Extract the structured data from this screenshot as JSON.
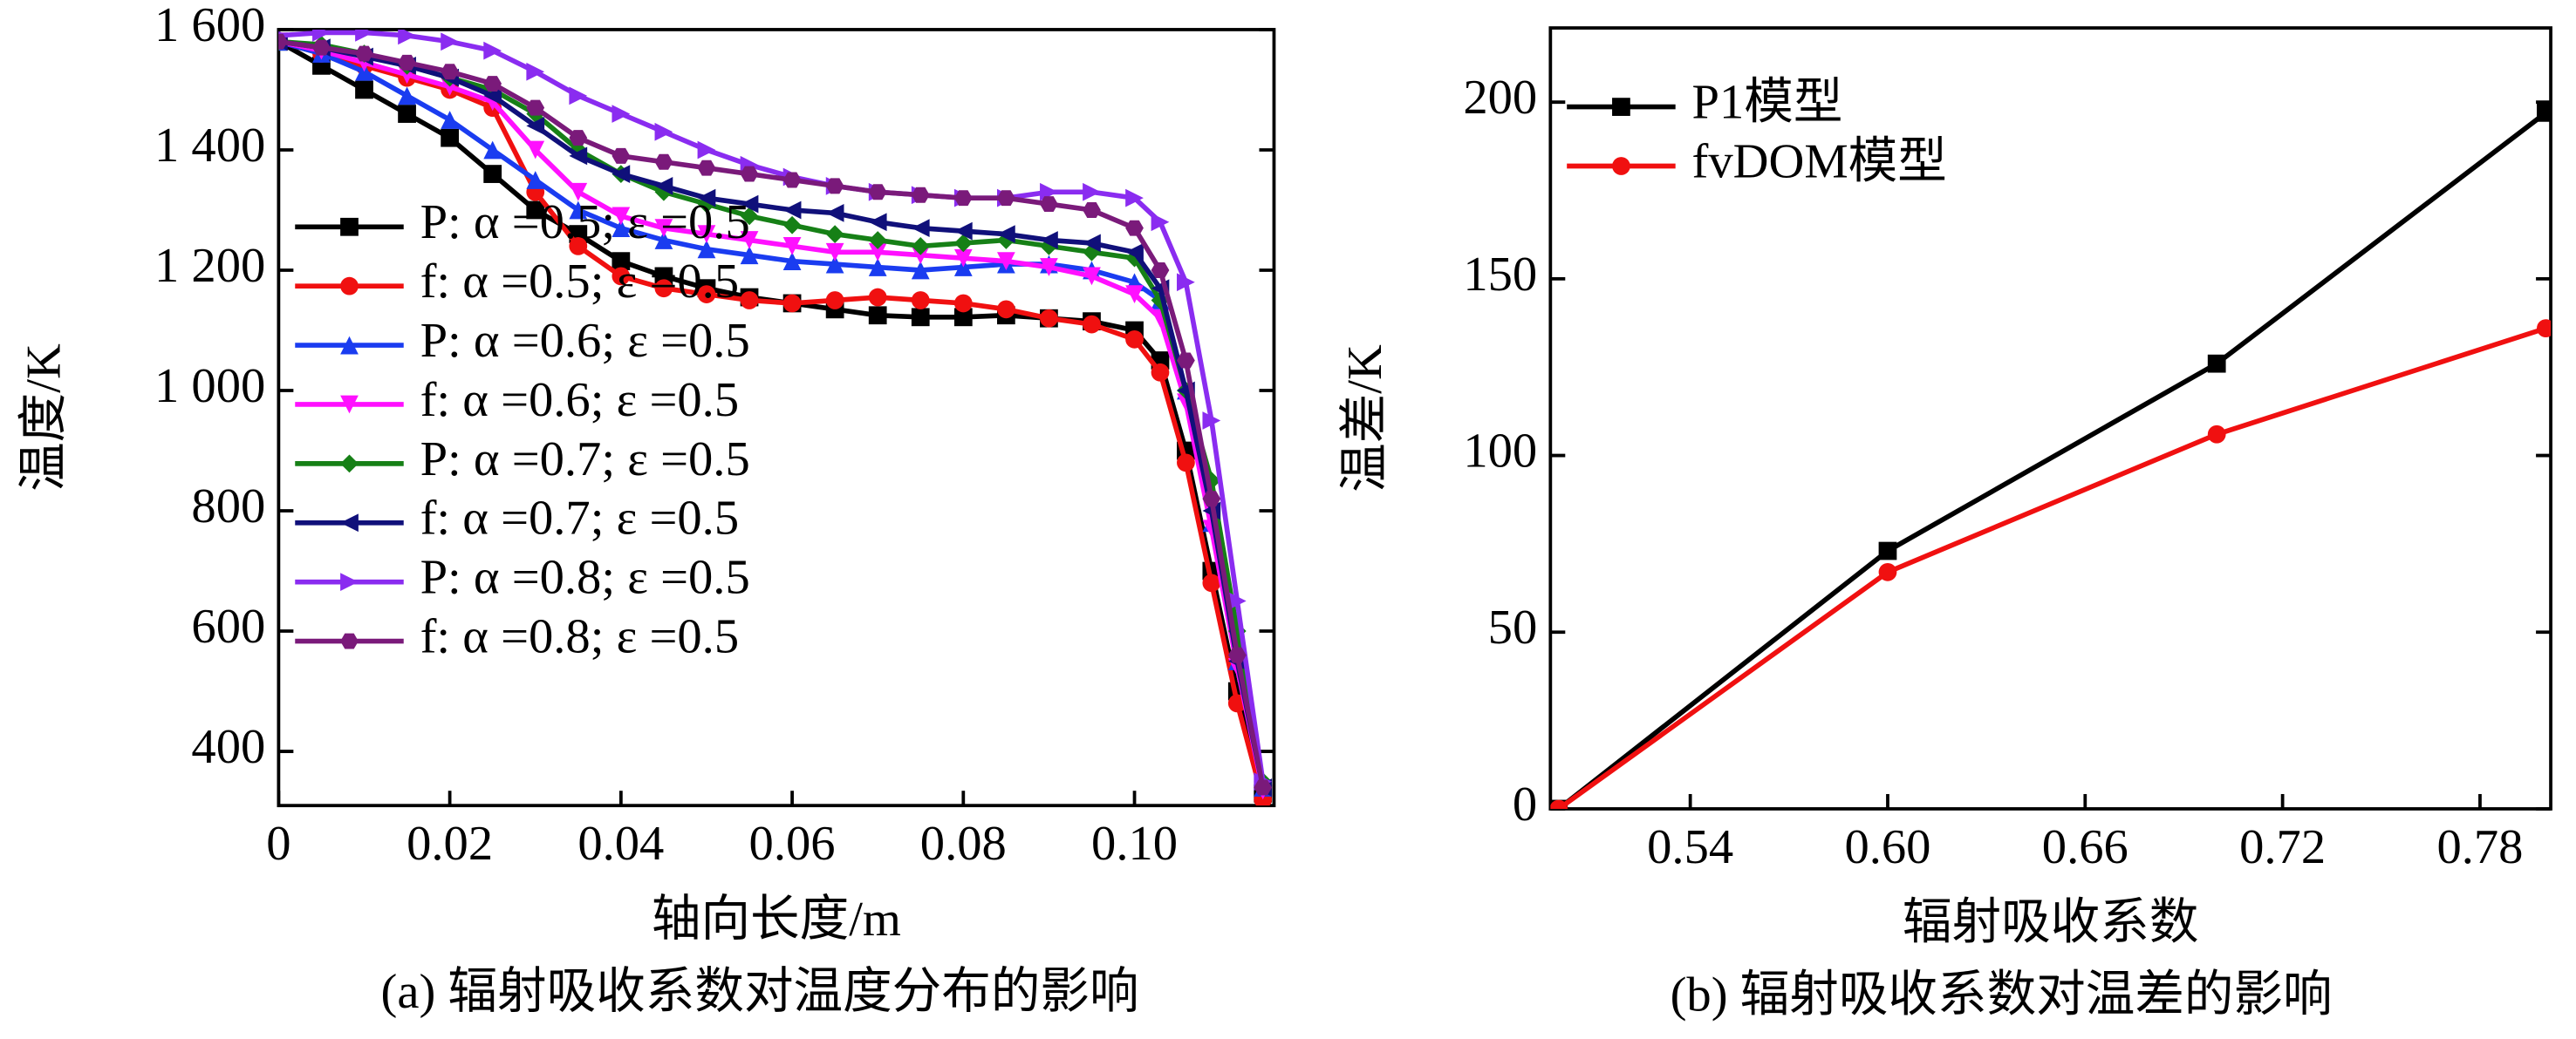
{
  "chart_data": [
    {
      "type": "line",
      "caption": "(a) 辐射吸收系数对温度分布的影响",
      "xlabel": "轴向长度/m",
      "ylabel": "温度/K",
      "xlim": [
        0,
        0.1163
      ],
      "ylim": [
        310,
        1600
      ],
      "xticks": [
        0,
        {
          "value": 0.02,
          "label": "0.02"
        },
        {
          "value": 0.04,
          "label": "0.04"
        },
        {
          "value": 0.06,
          "label": "0.06"
        },
        {
          "value": 0.08,
          "label": "0.08"
        },
        {
          "value": 0.1,
          "label": "0.10"
        }
      ],
      "yticks": [
        400,
        600,
        800,
        {
          "value": 1000,
          "label": "1 000"
        },
        {
          "value": 1200,
          "label": "1 200"
        },
        {
          "value": 1400,
          "label": "1 400"
        },
        {
          "value": 1600,
          "label": "1 600"
        }
      ],
      "legend": "center left",
      "x": [
        0,
        0.005,
        0.01,
        0.015,
        0.02,
        0.025,
        0.03,
        0.035,
        0.04,
        0.045,
        0.05,
        0.055,
        0.06,
        0.065,
        0.07,
        0.075,
        0.08,
        0.085,
        0.09,
        0.095,
        0.1,
        0.103,
        0.106,
        0.109,
        0.112,
        0.115
      ],
      "series": [
        {
          "name": "P: α =0.5; ε =0.5",
          "color": "#000000",
          "marker": "square",
          "values": [
            1580,
            1540,
            1500,
            1460,
            1420,
            1360,
            1300,
            1260,
            1215,
            1190,
            1170,
            1155,
            1145,
            1135,
            1125,
            1122,
            1122,
            1125,
            1120,
            1115,
            1100,
            1050,
            900,
            700,
            500,
            330
          ]
        },
        {
          "name": "f: α =0.5; ε =0.5",
          "color": "#f01010",
          "marker": "circle",
          "values": [
            1580,
            1560,
            1540,
            1520,
            1500,
            1470,
            1330,
            1240,
            1190,
            1170,
            1160,
            1150,
            1145,
            1150,
            1155,
            1150,
            1145,
            1135,
            1120,
            1110,
            1085,
            1030,
            880,
            680,
            480,
            320
          ]
        },
        {
          "name": "P: α =0.6; ε =0.5",
          "color": "#1a3cf0",
          "marker": "triangle-up",
          "values": [
            1580,
            1560,
            1530,
            1490,
            1450,
            1400,
            1350,
            1300,
            1270,
            1250,
            1235,
            1225,
            1215,
            1210,
            1205,
            1200,
            1205,
            1210,
            1210,
            1200,
            1180,
            1150,
            1000,
            780,
            550,
            340
          ]
        },
        {
          "name": "f: α =0.6; ε =0.5",
          "color": "#ff10ff",
          "marker": "triangle-down",
          "values": [
            1580,
            1565,
            1545,
            1525,
            1505,
            1480,
            1400,
            1330,
            1290,
            1270,
            1260,
            1250,
            1240,
            1230,
            1230,
            1225,
            1220,
            1215,
            1205,
            1190,
            1160,
            1120,
            980,
            770,
            540,
            335
          ]
        },
        {
          "name": "P: α =0.7; ε =0.5",
          "color": "#168016",
          "marker": "diamond",
          "values": [
            1580,
            1575,
            1560,
            1540,
            1520,
            1500,
            1460,
            1400,
            1360,
            1330,
            1310,
            1290,
            1275,
            1260,
            1250,
            1240,
            1245,
            1250,
            1240,
            1230,
            1220,
            1150,
            1000,
            850,
            600,
            350
          ]
        },
        {
          "name": "f: α =0.7; ε =0.5",
          "color": "#10107a",
          "marker": "triangle-left",
          "values": [
            1580,
            1570,
            1555,
            1540,
            1520,
            1490,
            1440,
            1390,
            1360,
            1340,
            1320,
            1310,
            1300,
            1295,
            1280,
            1270,
            1265,
            1260,
            1250,
            1245,
            1230,
            1170,
            1000,
            800,
            550,
            340
          ]
        },
        {
          "name": "P: α =0.8; ε =0.5",
          "color": "#8a2cf0",
          "marker": "triangle-right",
          "values": [
            1590,
            1595,
            1595,
            1590,
            1580,
            1565,
            1530,
            1490,
            1460,
            1430,
            1400,
            1375,
            1355,
            1340,
            1330,
            1325,
            1320,
            1320,
            1330,
            1330,
            1320,
            1280,
            1180,
            950,
            650,
            350
          ]
        },
        {
          "name": "f: α =0.8; ε =0.5",
          "color": "#7a1a7a",
          "marker": "hexagon",
          "values": [
            1580,
            1570,
            1560,
            1545,
            1530,
            1510,
            1470,
            1420,
            1390,
            1380,
            1370,
            1360,
            1350,
            1340,
            1330,
            1325,
            1320,
            1320,
            1310,
            1300,
            1270,
            1200,
            1050,
            820,
            560,
            340
          ]
        }
      ]
    },
    {
      "type": "line",
      "caption": "(b) 辐射吸收系数对温差的影响",
      "xlabel": "辐射吸收系数",
      "ylabel": "温差/K",
      "xlim": [
        0.4975,
        0.8015
      ],
      "ylim": [
        0,
        221
      ],
      "xticks": [
        {
          "value": 0.54,
          "label": "0.54"
        },
        {
          "value": 0.6,
          "label": "0.60"
        },
        {
          "value": 0.66,
          "label": "0.66"
        },
        {
          "value": 0.72,
          "label": "0.72"
        },
        {
          "value": 0.78,
          "label": "0.78"
        }
      ],
      "yticks": [
        0,
        50,
        100,
        150,
        200
      ],
      "legend": "upper left",
      "x": [
        0.5,
        0.6,
        0.7,
        0.8
      ],
      "series": [
        {
          "name": "P1模型",
          "color": "#000000",
          "marker": "square",
          "values": [
            0,
            73,
            126,
            197
          ]
        },
        {
          "name": "fvDOM模型",
          "color": "#f01010",
          "marker": "circle",
          "values": [
            0,
            67,
            106,
            136
          ]
        }
      ]
    }
  ]
}
